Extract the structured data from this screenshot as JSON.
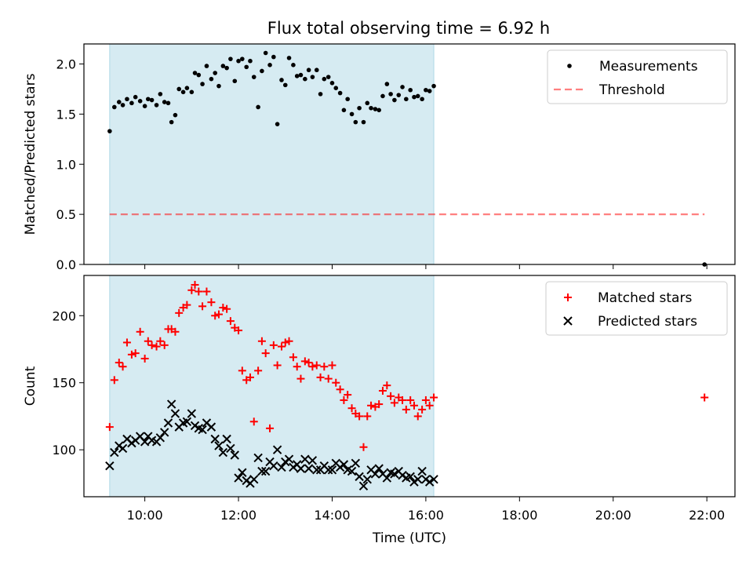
{
  "title": "Flux total observing time = 6.92 h",
  "colors": {
    "shade": "#add8e6",
    "measurement": "#000000",
    "threshold": "#ff0000",
    "matched": "#ff0000",
    "predicted": "#000000"
  },
  "chart_data": [
    {
      "type": "scatter",
      "ylabel": "Matched/Predicted stars",
      "xlim": [
        8.7,
        22.6
      ],
      "ylim": [
        0,
        2.2
      ],
      "yticks": [
        0.0,
        0.5,
        1.0,
        1.5,
        2.0
      ],
      "ytick_labels": [
        "0.0",
        "0.5",
        "1.0",
        "1.5",
        "2.0"
      ],
      "shaded_interval": [
        9.25,
        16.17
      ],
      "legend_position": "top-right",
      "series": [
        {
          "name": "Measurements",
          "marker": "dot",
          "x": [
            9.25,
            9.35,
            9.45,
            9.53,
            9.62,
            9.72,
            9.8,
            9.9,
            10.0,
            10.07,
            10.15,
            10.25,
            10.33,
            10.42,
            10.5,
            10.57,
            10.65,
            10.73,
            10.82,
            10.9,
            11.0,
            11.07,
            11.15,
            11.23,
            11.32,
            11.42,
            11.5,
            11.58,
            11.67,
            11.75,
            11.83,
            11.92,
            12.0,
            12.08,
            12.17,
            12.25,
            12.33,
            12.42,
            12.5,
            12.58,
            12.67,
            12.75,
            12.83,
            12.92,
            13.0,
            13.08,
            13.17,
            13.25,
            13.33,
            13.42,
            13.5,
            13.58,
            13.67,
            13.75,
            13.83,
            13.92,
            14.0,
            14.08,
            14.17,
            14.25,
            14.33,
            14.42,
            14.5,
            14.58,
            14.67,
            14.75,
            14.83,
            14.92,
            15.0,
            15.08,
            15.17,
            15.25,
            15.33,
            15.42,
            15.5,
            15.58,
            15.67,
            15.75,
            15.83,
            15.92,
            16.0,
            16.08,
            16.17,
            21.95
          ],
          "y": [
            1.33,
            1.57,
            1.62,
            1.59,
            1.65,
            1.61,
            1.67,
            1.63,
            1.58,
            1.65,
            1.64,
            1.59,
            1.7,
            1.62,
            1.61,
            1.42,
            1.49,
            1.75,
            1.72,
            1.76,
            1.72,
            1.91,
            1.89,
            1.8,
            1.98,
            1.85,
            1.91,
            1.78,
            1.98,
            1.96,
            2.05,
            1.83,
            2.03,
            2.05,
            1.97,
            2.03,
            1.87,
            1.57,
            1.93,
            2.11,
            1.99,
            2.07,
            1.4,
            1.84,
            1.79,
            2.06,
            1.99,
            1.88,
            1.89,
            1.85,
            1.94,
            1.87,
            1.94,
            1.7,
            1.85,
            1.87,
            1.81,
            1.76,
            1.71,
            1.54,
            1.65,
            1.5,
            1.42,
            1.56,
            1.42,
            1.61,
            1.56,
            1.55,
            1.54,
            1.68,
            1.8,
            1.7,
            1.64,
            1.69,
            1.77,
            1.65,
            1.74,
            1.67,
            1.68,
            1.65,
            1.74,
            1.73,
            1.78,
            0.0
          ]
        },
        {
          "name": "Threshold",
          "style": "dashed",
          "x": [
            9.25,
            21.95
          ],
          "y": [
            0.5,
            0.5
          ]
        }
      ]
    },
    {
      "type": "scatter",
      "xlabel": "Time (UTC)",
      "ylabel": "Count",
      "xlim": [
        8.7,
        22.6
      ],
      "ylim": [
        65,
        230
      ],
      "xticks": [
        10,
        12,
        14,
        16,
        18,
        20,
        22
      ],
      "xtick_labels": [
        "10:00",
        "12:00",
        "14:00",
        "16:00",
        "18:00",
        "20:00",
        "22:00"
      ],
      "yticks": [
        100,
        150,
        200
      ],
      "ytick_labels": [
        "100",
        "150",
        "200"
      ],
      "shaded_interval": [
        9.25,
        16.17
      ],
      "legend_position": "top-right",
      "series": [
        {
          "name": "Matched stars",
          "marker": "plus",
          "x": [
            9.25,
            9.35,
            9.45,
            9.53,
            9.62,
            9.72,
            9.8,
            9.9,
            10.0,
            10.07,
            10.15,
            10.25,
            10.33,
            10.42,
            10.5,
            10.57,
            10.65,
            10.73,
            10.82,
            10.9,
            11.0,
            11.07,
            11.15,
            11.23,
            11.32,
            11.42,
            11.5,
            11.58,
            11.67,
            11.75,
            11.83,
            11.92,
            12.0,
            12.08,
            12.17,
            12.25,
            12.33,
            12.42,
            12.5,
            12.58,
            12.67,
            12.75,
            12.83,
            12.92,
            13.0,
            13.08,
            13.17,
            13.25,
            13.33,
            13.42,
            13.5,
            13.58,
            13.67,
            13.75,
            13.83,
            13.92,
            14.0,
            14.08,
            14.17,
            14.25,
            14.33,
            14.42,
            14.5,
            14.58,
            14.67,
            14.75,
            14.83,
            14.92,
            15.0,
            15.08,
            15.17,
            15.25,
            15.33,
            15.42,
            15.5,
            15.58,
            15.67,
            15.75,
            15.83,
            15.92,
            16.0,
            16.08,
            16.17,
            21.95
          ],
          "y": [
            117,
            152,
            165,
            162,
            180,
            171,
            172,
            188,
            168,
            181,
            178,
            177,
            181,
            178,
            190,
            190,
            188,
            202,
            206,
            208,
            219,
            223,
            218,
            207,
            218,
            210,
            200,
            201,
            206,
            205,
            196,
            191,
            189,
            159,
            152,
            154,
            121,
            159,
            181,
            172,
            116,
            178,
            163,
            177,
            180,
            181,
            169,
            162,
            153,
            166,
            165,
            162,
            163,
            154,
            162,
            153,
            163,
            150,
            145,
            137,
            141,
            131,
            127,
            125,
            102,
            125,
            133,
            132,
            134,
            144,
            148,
            140,
            135,
            139,
            137,
            130,
            137,
            133,
            125,
            130,
            137,
            133,
            139,
            139
          ]
        },
        {
          "name": "Predicted stars",
          "marker": "x",
          "x": [
            9.25,
            9.35,
            9.45,
            9.53,
            9.62,
            9.72,
            9.8,
            9.9,
            10.0,
            10.07,
            10.15,
            10.25,
            10.33,
            10.42,
            10.5,
            10.57,
            10.65,
            10.73,
            10.82,
            10.9,
            11.0,
            11.07,
            11.15,
            11.23,
            11.32,
            11.42,
            11.5,
            11.58,
            11.67,
            11.75,
            11.83,
            11.92,
            12.0,
            12.08,
            12.17,
            12.25,
            12.33,
            12.42,
            12.5,
            12.58,
            12.67,
            12.75,
            12.83,
            12.92,
            13.0,
            13.08,
            13.17,
            13.25,
            13.33,
            13.42,
            13.5,
            13.58,
            13.67,
            13.75,
            13.83,
            13.92,
            14.0,
            14.08,
            14.17,
            14.25,
            14.33,
            14.42,
            14.5,
            14.58,
            14.67,
            14.75,
            14.83,
            14.92,
            15.0,
            15.08,
            15.17,
            15.25,
            15.33,
            15.42,
            15.5,
            15.58,
            15.67,
            15.75,
            15.83,
            15.92,
            16.0,
            16.08,
            16.17
          ],
          "y": [
            88,
            98,
            103,
            101,
            108,
            105,
            107,
            110,
            106,
            110,
            107,
            106,
            109,
            113,
            120,
            134,
            127,
            117,
            120,
            121,
            127,
            118,
            116,
            115,
            120,
            117,
            108,
            103,
            98,
            108,
            101,
            96,
            79,
            83,
            77,
            75,
            78,
            94,
            84,
            84,
            91,
            88,
            100,
            87,
            91,
            93,
            87,
            89,
            86,
            93,
            86,
            92,
            85,
            85,
            88,
            85,
            85,
            90,
            87,
            89,
            85,
            84,
            90,
            80,
            73,
            78,
            85,
            82,
            86,
            82,
            79,
            83,
            82,
            84,
            81,
            79,
            80,
            76,
            78,
            84,
            78,
            76,
            78
          ]
        }
      ]
    }
  ]
}
